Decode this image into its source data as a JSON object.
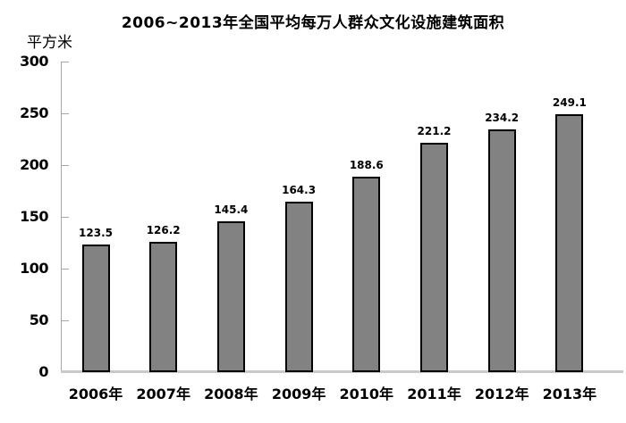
{
  "chart_data": {
    "type": "bar",
    "title": "2006~2013年全国平均每万人群众文化设施建筑面积",
    "ylabel": "平方米",
    "xlabel": "",
    "categories": [
      "2006年",
      "2007年",
      "2008年",
      "2009年",
      "2010年",
      "2011年",
      "2012年",
      "2013年"
    ],
    "values": [
      123.5,
      126.2,
      145.4,
      164.3,
      188.6,
      221.2,
      234.2,
      249.1
    ],
    "value_labels": [
      "123.5",
      "126.2",
      "145.4",
      "164.3",
      "188.6",
      "221.2",
      "234.2",
      "249.1"
    ],
    "ylim": [
      0,
      300
    ],
    "yticks": [
      0,
      50,
      100,
      150,
      200,
      250,
      300
    ],
    "ytick_labels": [
      "0",
      "50",
      "100",
      "150",
      "200",
      "250",
      "300"
    ],
    "grid": false,
    "legend_position": "none",
    "data_labels_shown": true,
    "colors": {
      "bar_fill": "#828282",
      "bar_border": "#000000",
      "axis_line": "#a6a6a6",
      "baseline": "#c9c9c9",
      "text": "#000000",
      "background": "#ffffff"
    }
  }
}
